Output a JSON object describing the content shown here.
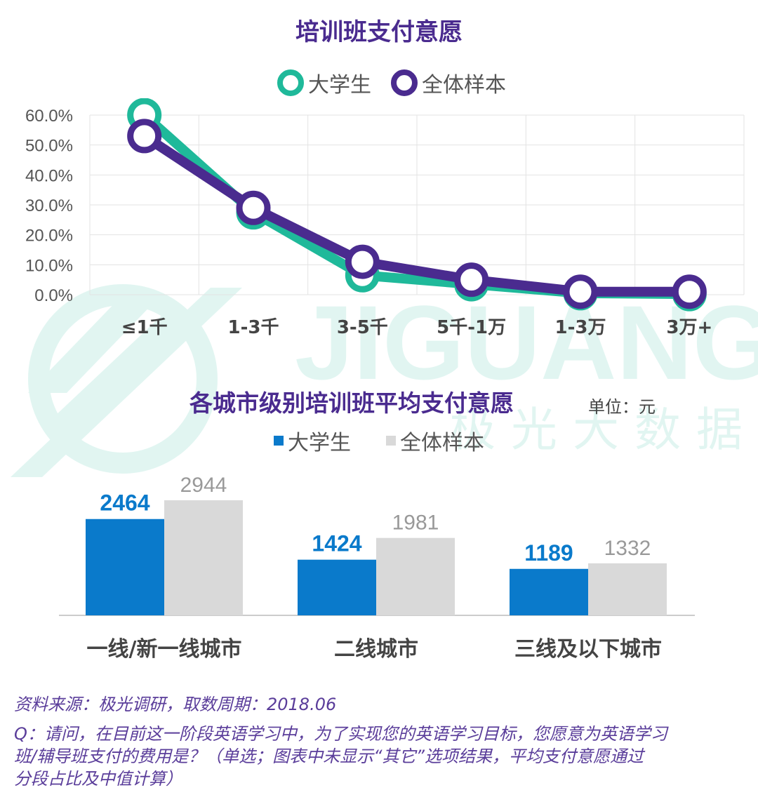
{
  "line_chart_title": "培训班支付意愿",
  "bar_chart_title": "各城市级别培训班平均支付意愿",
  "bar_chart_unit": "单位：元",
  "watermark": {
    "brand_en": "JIGUANG",
    "brand_cn": "极光大数据"
  },
  "footer": {
    "source": "资料来源：极光调研，取数周期：2018.06",
    "question_line1": "Q：请问，在目前这一阶段英语学习中，为了实现您的英语学习目标，您愿意为英语学习",
    "question_line2": "班/辅导班支付的费用是？（单选；图表中未显示“其它”选项结果，平均支付意愿通过",
    "question_line3": "分段占比及中值计算）"
  },
  "chart_data": [
    {
      "type": "line",
      "title": "培训班支付意愿",
      "categories": [
        "≤1千",
        "1-3千",
        "3-5千",
        "5千-1万",
        "1-3万",
        "3万+"
      ],
      "series": [
        {
          "name": "大学生",
          "color": "#1fb99a",
          "values": [
            60.0,
            27.5,
            6.5,
            3.5,
            0.5,
            0.2
          ]
        },
        {
          "name": "全体样本",
          "color": "#4a2b8f",
          "values": [
            53.0,
            29.0,
            11.0,
            5.0,
            1.0,
            1.0
          ]
        }
      ],
      "yticks": [
        "60.0%",
        "50.0%",
        "40.0%",
        "30.0%",
        "20.0%",
        "10.0%",
        "0.0%"
      ],
      "ylim": [
        0,
        60
      ],
      "grid": true,
      "legend_position": "top"
    },
    {
      "type": "bar",
      "title": "各城市级别培训班平均支付意愿",
      "unit": "单位：元",
      "categories": [
        "一线/新一线城市",
        "二线城市",
        "三线及以下城市"
      ],
      "series": [
        {
          "name": "大学生",
          "color": "#0a7acb",
          "values": [
            2464,
            1424,
            1189
          ]
        },
        {
          "name": "全体样本",
          "color": "#d9d9d9",
          "values": [
            2944,
            1981,
            1332
          ]
        }
      ],
      "legend_position": "top"
    }
  ]
}
